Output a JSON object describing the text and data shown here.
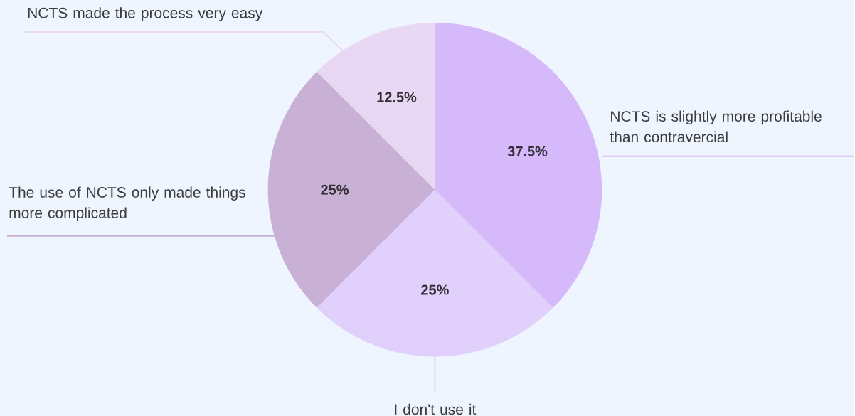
{
  "chart_data": {
    "type": "pie",
    "categories": [
      "NCTS is slightly more profitable than contravercial",
      "I don't use it",
      "The use of NCTS only made things more complicated",
      "NCTS made the process very easy"
    ],
    "values": [
      37.5,
      25,
      25,
      12.5
    ],
    "value_labels": [
      "37.5%",
      "25%",
      "25%",
      "12.5%"
    ],
    "colors": [
      "#d5b9fb",
      "#e1cffc",
      "#c9b1d6",
      "#e9d8f4"
    ]
  }
}
